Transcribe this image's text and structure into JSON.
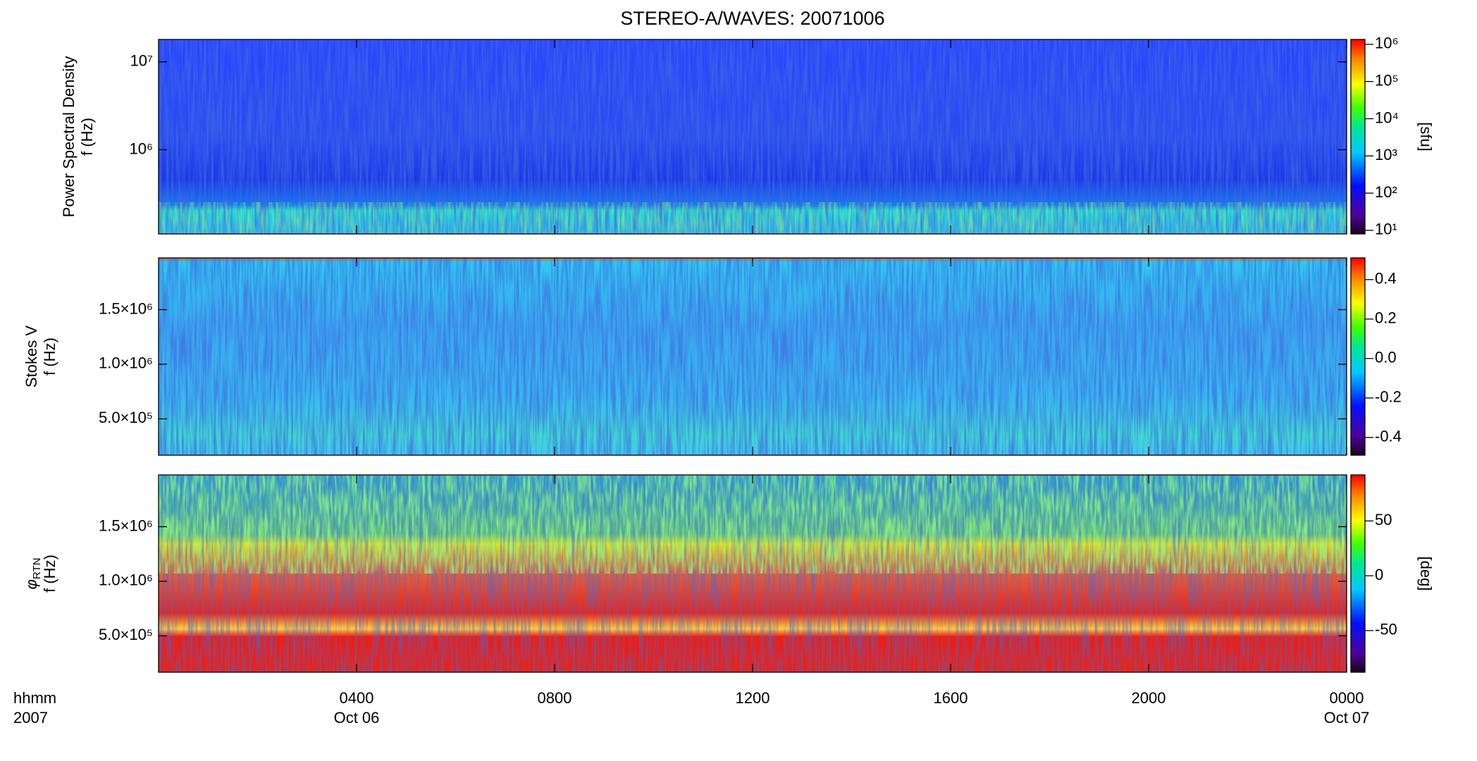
{
  "chart_data": [
    {
      "type": "heatmap",
      "title": "STEREO-A/WAVES: 20071006",
      "ylabel": "Power Spectral Density",
      "ylabel2": "f (Hz)",
      "ylog": true,
      "ylim": [
        110000,
        18000000
      ],
      "yticks": [
        {
          "value": 1000000,
          "label": "10⁶"
        },
        {
          "value": 10000000,
          "label": "10⁷"
        }
      ],
      "colormap": "rainbow",
      "zlog": true,
      "zlim": [
        8,
        1350000
      ],
      "zticks": [
        {
          "value": 10,
          "label": "10¹"
        },
        {
          "value": 100,
          "label": "10²"
        },
        {
          "value": 1000,
          "label": "10³"
        },
        {
          "value": 10000,
          "label": "10⁴"
        },
        {
          "value": 100000,
          "label": "10⁵"
        },
        {
          "value": 1000000,
          "label": "10⁶"
        }
      ],
      "zlabel": "[sfu]"
    },
    {
      "type": "heatmap",
      "ylabel": "Stokes V",
      "ylabel2": "f (Hz)",
      "ylog": false,
      "ylim": [
        167000,
        1974000
      ],
      "yticks": [
        {
          "value": 500000,
          "label": "5.0×10⁵"
        },
        {
          "value": 1000000,
          "label": "1.0×10⁶"
        },
        {
          "value": 1500000,
          "label": "1.5×10⁶"
        }
      ],
      "colormap": "rainbow",
      "zlog": false,
      "zlim": [
        -0.49,
        0.51
      ],
      "zticks": [
        -0.4,
        -0.2,
        {
          "value": 0,
          "label": "0.0"
        },
        0.2,
        0.4
      ]
    },
    {
      "type": "heatmap",
      "ylabel": {
        "symbol": "φ",
        "subscript": "RTN"
      },
      "ylabel2": "f (Hz)",
      "ylog": false,
      "ylim": [
        167000,
        1974000
      ],
      "yticks": [
        {
          "value": 500000,
          "label": "5.0×10⁵"
        },
        {
          "value": 1000000,
          "label": "1.0×10⁶"
        },
        {
          "value": 1500000,
          "label": "1.5×10⁶"
        }
      ],
      "colormap": "rainbow",
      "zlog": false,
      "zlim": [
        -88,
        92
      ],
      "zticks": [
        -50,
        0,
        50
      ],
      "zlabel": "[deg]",
      "xlabel": "hhmm",
      "xlabel2": "2007",
      "xlim": [
        0,
        24
      ],
      "xticks": [
        {
          "value": 4,
          "label": "0400"
        },
        {
          "value": 8,
          "label": "0800"
        },
        {
          "value": 12,
          "label": "1200"
        },
        {
          "value": 16,
          "label": "1600"
        },
        {
          "value": 20,
          "label": "2000"
        },
        {
          "value": 24,
          "label": "0000"
        }
      ],
      "date_labels": [
        {
          "x": 4,
          "label": "Oct 06"
        },
        {
          "x": 24,
          "label": "Oct 07"
        }
      ]
    }
  ]
}
